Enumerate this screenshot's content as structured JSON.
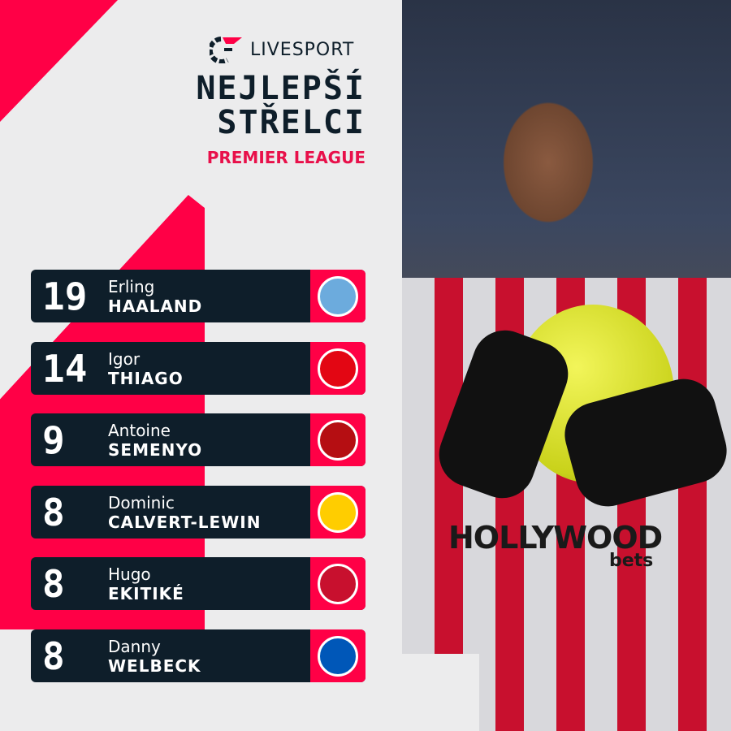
{
  "brand": {
    "name": "LIVESPORT"
  },
  "title": {
    "line1": "NEJLEPŠÍ",
    "line2": "STŘELCI",
    "league": "PREMIER LEAGUE"
  },
  "colors": {
    "accent": "#ff0046",
    "dark": "#0e1e2a",
    "background": "#ececed"
  },
  "scorers": [
    {
      "goals": "19",
      "first": "Erling",
      "last": "HAALAND",
      "club_icon": "manchester-city-crest",
      "crest_color": "#6cabdd"
    },
    {
      "goals": "14",
      "first": "Igor",
      "last": "THIAGO",
      "club_icon": "brentford-crest",
      "crest_color": "#e30613"
    },
    {
      "goals": "9",
      "first": "Antoine",
      "last": "SEMENYO",
      "club_icon": "bournemouth-crest",
      "crest_color": "#b50e12"
    },
    {
      "goals": "8",
      "first": "Dominic",
      "last": "CALVERT-LEWIN",
      "club_icon": "leeds-united-crest",
      "crest_color": "#ffcd00"
    },
    {
      "goals": "8",
      "first": "Hugo",
      "last": "EKITIKÉ",
      "club_icon": "liverpool-crest",
      "crest_color": "#c8102e"
    },
    {
      "goals": "8",
      "first": "Danny",
      "last": "WELBECK",
      "club_icon": "brighton-crest",
      "crest_color": "#0057b8"
    }
  ],
  "photo": {
    "sponsor": "HOLLYWOOD",
    "sponsor_sub": "bets"
  }
}
